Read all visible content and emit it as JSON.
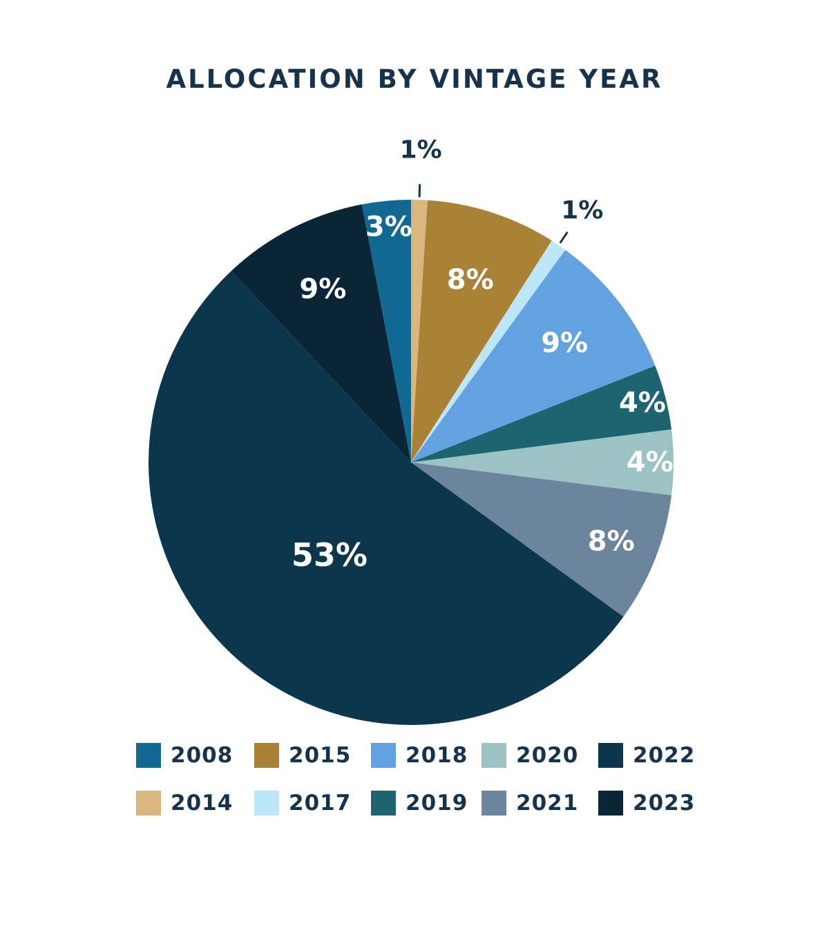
{
  "chart_data": {
    "type": "pie",
    "title": "ALLOCATION BY VINTAGE YEAR",
    "slices": [
      {
        "label": "2014",
        "value": 1,
        "display": "1%",
        "color": "#d8b67e",
        "label_color": "#17324b",
        "label_outside": true
      },
      {
        "label": "2015",
        "value": 8,
        "display": "8%",
        "color": "#a98235",
        "label_color": "#ffffff",
        "label_outside": false
      },
      {
        "label": "2017",
        "value": 1,
        "display": "1%",
        "color": "#bde7f8",
        "label_color": "#17324b",
        "label_outside": true
      },
      {
        "label": "2018",
        "value": 9,
        "display": "9%",
        "color": "#62a2e0",
        "label_color": "#ffffff",
        "label_outside": false
      },
      {
        "label": "2019",
        "value": 4,
        "display": "4%",
        "color": "#1d6470",
        "label_color": "#ffffff",
        "label_outside": false
      },
      {
        "label": "2020",
        "value": 4,
        "display": "4%",
        "color": "#9cc2c3",
        "label_color": "#ffffff",
        "label_outside": false
      },
      {
        "label": "2021",
        "value": 8,
        "display": "8%",
        "color": "#6d849d",
        "label_color": "#ffffff",
        "label_outside": false
      },
      {
        "label": "2022",
        "value": 53,
        "display": "53%",
        "color": "#0b364b",
        "label_color": "#ffffff",
        "label_outside": false
      },
      {
        "label": "2023",
        "value": 9,
        "display": "9%",
        "color": "#0a2536",
        "label_color": "#ffffff",
        "label_outside": false
      },
      {
        "label": "2008",
        "value": 3,
        "display": "3%",
        "color": "#106893",
        "label_color": "#ffffff",
        "label_outside": false
      }
    ],
    "legend": {
      "placement": "bottom",
      "rows": [
        [
          {
            "label": "2008",
            "color": "#106893"
          },
          {
            "label": "2015",
            "color": "#a98235"
          },
          {
            "label": "2018",
            "color": "#62a2e0"
          },
          {
            "label": "2020",
            "color": "#9cc2c3"
          },
          {
            "label": "2022",
            "color": "#0b364b"
          }
        ],
        [
          {
            "label": "2014",
            "color": "#d8b67e"
          },
          {
            "label": "2017",
            "color": "#bde7f8"
          },
          {
            "label": "2019",
            "color": "#1d6470"
          },
          {
            "label": "2021",
            "color": "#6d849d"
          },
          {
            "label": "2023",
            "color": "#0a2536"
          }
        ]
      ]
    }
  }
}
